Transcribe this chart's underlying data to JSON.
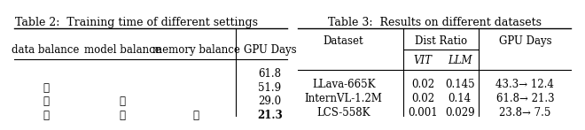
{
  "table2_title": "Table 2:  Training time of different settings",
  "table2_headers": [
    "data balance",
    "model balance",
    "memory balance",
    "GPU Days"
  ],
  "table2_rows": [
    [
      "",
      "",
      "",
      "61.8"
    ],
    [
      "✓",
      "",
      "",
      "51.9"
    ],
    [
      "✓",
      "✓",
      "",
      "29.0"
    ],
    [
      "✓",
      "✓",
      "✓",
      "21.3"
    ]
  ],
  "table2_last_row_bold": true,
  "table3_title": "Table 3:  Results on different datasets",
  "table3_col1": "Dataset",
  "table3_dist_ratio": "Dist Ratio",
  "table3_vit": "VIT",
  "table3_llm": "LLM",
  "table3_gpu_days": "GPU Days",
  "table3_rows": [
    [
      "LLava-665K",
      "0.02",
      "0.145",
      "43.3→ 12.4"
    ],
    [
      "InternVL-1.2M",
      "0.02",
      "0.14",
      "61.8→ 21.3"
    ],
    [
      "LCS-558K",
      "0.001",
      "0.029",
      "23.8→ 7.5"
    ]
  ],
  "bg_color": "#ffffff",
  "text_color": "#000000",
  "line_color": "#000000",
  "title_fontsize": 9,
  "header_fontsize": 8.5,
  "cell_fontsize": 8.5
}
